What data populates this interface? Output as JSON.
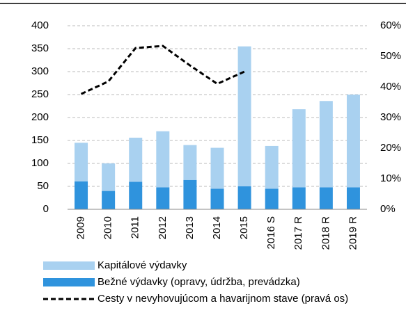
{
  "chart_data": {
    "type": "bar",
    "categories": [
      "2009",
      "2010",
      "2011",
      "2012",
      "2013",
      "2014",
      "2015",
      "2016 S",
      "2017 R",
      "2018 R",
      "2019 R"
    ],
    "series": [
      {
        "name": "Kapitálové výdavky",
        "color": "#a9d1f0",
        "values": [
          84,
          60,
          96,
          122,
          76,
          89,
          305,
          93,
          170,
          188,
          202
        ]
      },
      {
        "name": "Bežné výdavky (opravy, údržba, prevádzka)",
        "color": "#2f93dd",
        "values": [
          61,
          40,
          60,
          48,
          64,
          45,
          50,
          45,
          48,
          48,
          48
        ]
      },
      {
        "name": "Cesty v nevyhovujúcom a havarijnom stave (pravá os)",
        "color": "#000000",
        "type": "line",
        "axis": "y2",
        "values": [
          37.7,
          41.8,
          52.7,
          53.4,
          47,
          41,
          45,
          null,
          null,
          null,
          null
        ]
      }
    ],
    "ylim": [
      0,
      400
    ],
    "yticks": [
      0,
      50,
      100,
      150,
      200,
      250,
      300,
      350,
      400
    ],
    "y2lim": [
      0,
      60
    ],
    "y2ticks": [
      {
        "value": 0,
        "label": "0%"
      },
      {
        "value": 10,
        "label": "10%"
      },
      {
        "value": 20,
        "label": "20%"
      },
      {
        "value": 30,
        "label": "30%"
      },
      {
        "value": 40,
        "label": "40%"
      },
      {
        "value": 50,
        "label": "50%"
      },
      {
        "value": 60,
        "label": "60%"
      }
    ],
    "grid": true
  }
}
